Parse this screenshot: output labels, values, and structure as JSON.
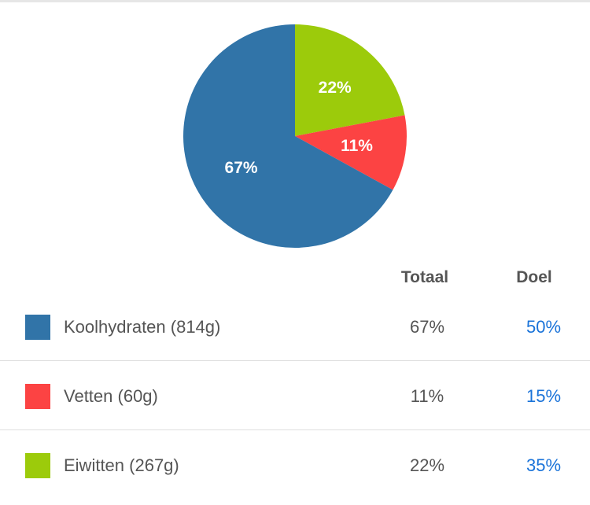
{
  "colors": {
    "koolhydraten": "#3174a8",
    "vetten": "#fc4343",
    "eiwitten": "#9ccb0b",
    "goal_text": "#1a73d9"
  },
  "chart_data": {
    "type": "pie",
    "slices": [
      {
        "key": "eiwitten",
        "value": 22,
        "label": "22%",
        "color": "#9ccb0b"
      },
      {
        "key": "vetten",
        "value": 11,
        "label": "11%",
        "color": "#fc4343"
      },
      {
        "key": "koolhydraten",
        "value": 67,
        "label": "67%",
        "color": "#3174a8"
      }
    ],
    "start": "12 o'clock",
    "direction": "clockwise"
  },
  "table": {
    "headers": {
      "totaal": "Totaal",
      "doel": "Doel"
    },
    "rows": [
      {
        "key": "koolhydraten",
        "label": "Koolhydraten (814g)",
        "total": "67%",
        "goal": "50%"
      },
      {
        "key": "vetten",
        "label": "Vetten (60g)",
        "total": "11%",
        "goal": "15%"
      },
      {
        "key": "eiwitten",
        "label": "Eiwitten (267g)",
        "total": "22%",
        "goal": "35%"
      }
    ]
  }
}
